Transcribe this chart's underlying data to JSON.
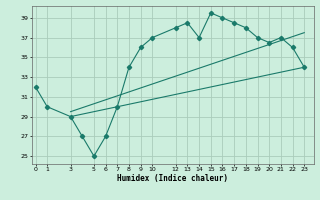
{
  "xlabel": "Humidex (Indice chaleur)",
  "bg_color": "#cceedd",
  "grid_color": "#aaccbb",
  "line_color": "#1a7a6a",
  "xlim": [
    -0.3,
    23.8
  ],
  "ylim": [
    24.2,
    40.2
  ],
  "xticks": [
    0,
    1,
    3,
    5,
    6,
    7,
    8,
    9,
    10,
    12,
    13,
    14,
    15,
    16,
    17,
    18,
    19,
    20,
    21,
    22,
    23
  ],
  "yticks": [
    25,
    27,
    29,
    31,
    33,
    35,
    37,
    39
  ],
  "main_x": [
    0,
    1,
    3,
    4,
    5,
    6,
    7,
    8,
    9,
    10,
    12,
    13,
    14,
    15,
    16,
    17,
    18,
    19,
    20,
    21,
    22,
    23
  ],
  "main_y": [
    32,
    30,
    29,
    27,
    25,
    27,
    30,
    34,
    36,
    37,
    38,
    38.5,
    37,
    39.5,
    39,
    38.5,
    38,
    37,
    36.5,
    37,
    36,
    34
  ],
  "line2_x": [
    3,
    23
  ],
  "line2_y": [
    29.0,
    34.0
  ],
  "line3_x": [
    3,
    23
  ],
  "line3_y": [
    29.5,
    37.5
  ]
}
